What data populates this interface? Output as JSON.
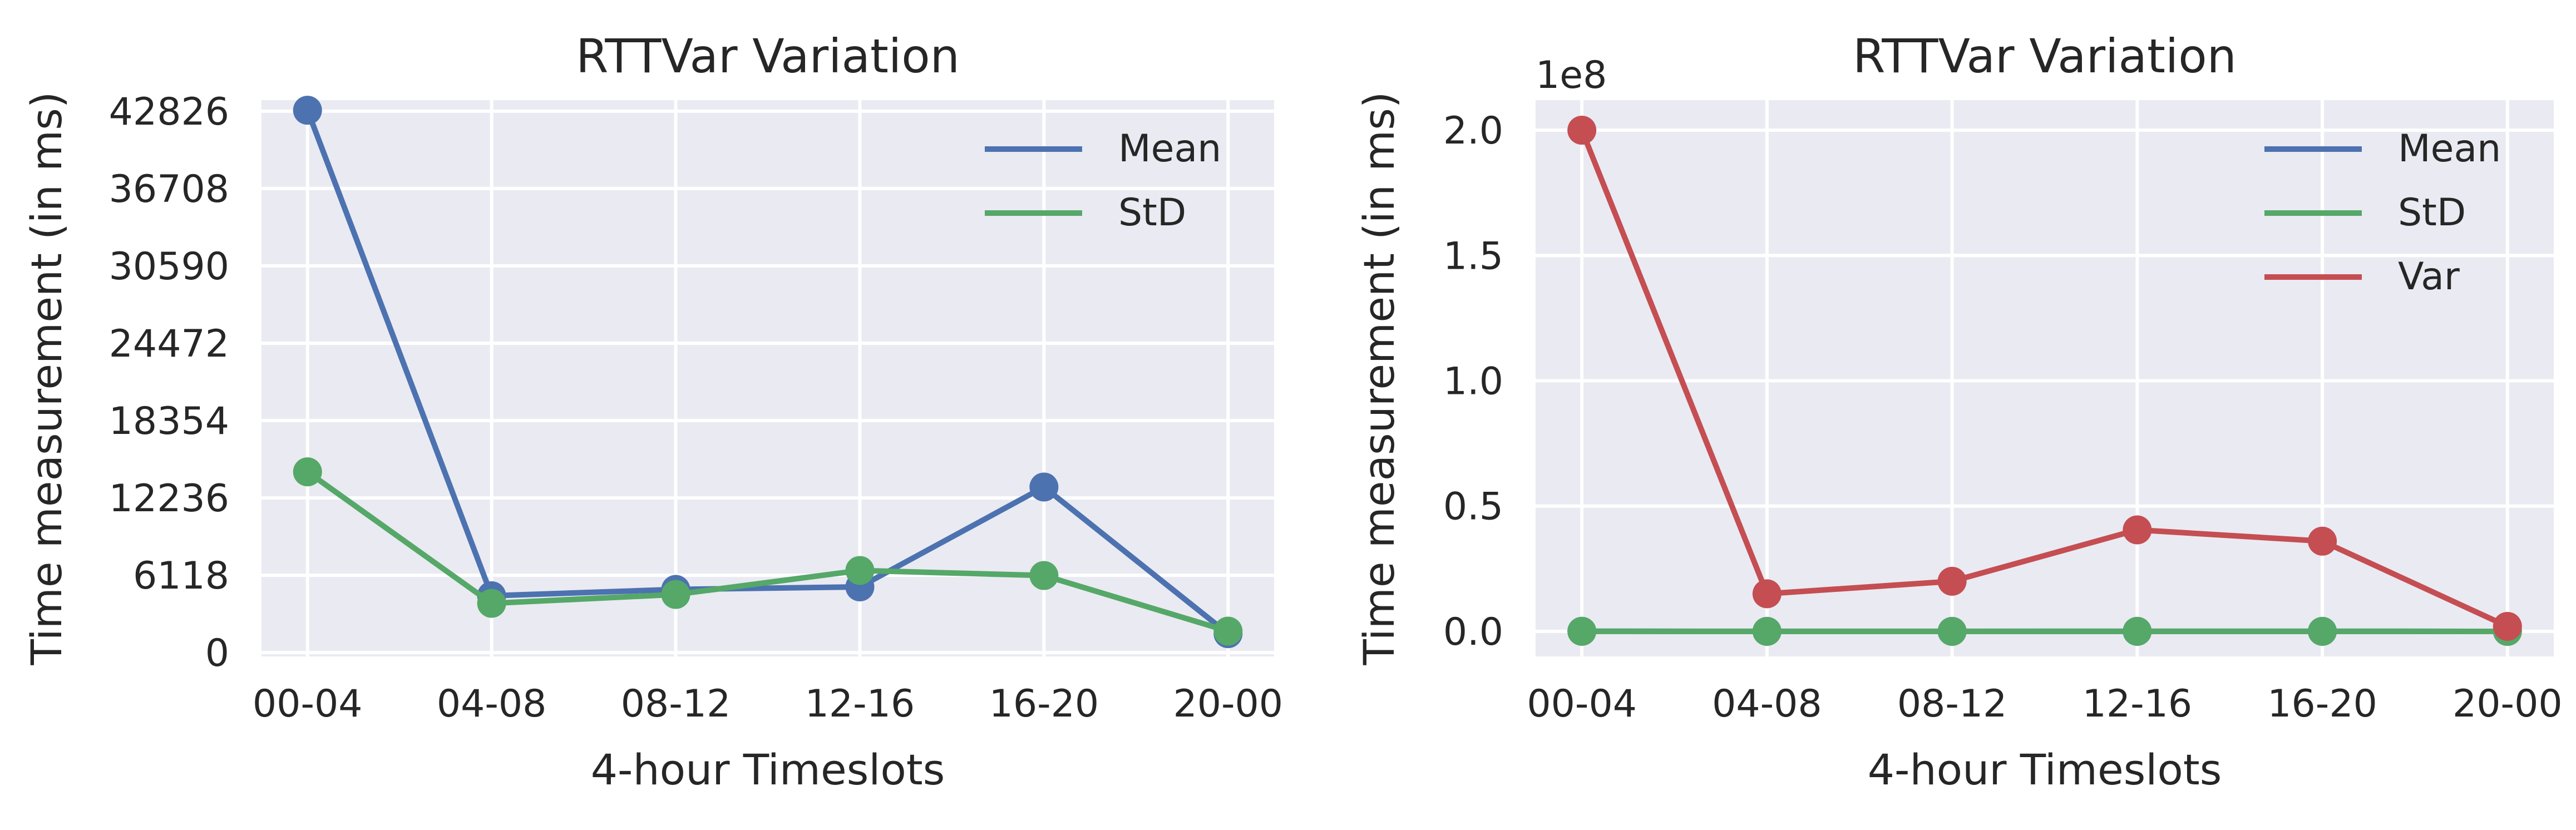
{
  "chart_data": [
    {
      "type": "line",
      "title": "RTTVar Variation",
      "xlabel": "4-hour Timeslots",
      "ylabel": "Time measurement (in ms)",
      "categories": [
        "00-04",
        "04-08",
        "08-12",
        "12-16",
        "16-20",
        "20-00"
      ],
      "yticks": [
        0,
        6118,
        12236,
        18354,
        24472,
        30590,
        36708,
        42826
      ],
      "ylim": [
        -300,
        43700
      ],
      "grid": true,
      "legend_position": "top-right",
      "series": [
        {
          "name": "Mean",
          "color": "#4c72b0",
          "values": [
            42900,
            4500,
            5000,
            5200,
            13100,
            1500
          ]
        },
        {
          "name": "StD",
          "color": "#55a868",
          "values": [
            14300,
            3900,
            4600,
            6500,
            6100,
            1700
          ]
        }
      ]
    },
    {
      "type": "line",
      "title": "RTTVar Variation",
      "xlabel": "4-hour Timeslots",
      "ylabel": "Time measurement (in ms)",
      "y_offset_label": "1e8",
      "categories": [
        "00-04",
        "04-08",
        "08-12",
        "12-16",
        "16-20",
        "20-00"
      ],
      "yticks": [
        0.0,
        0.5,
        1.0,
        1.5,
        2.0
      ],
      "ytick_labels": [
        "0.0",
        "0.5",
        "1.0",
        "1.5",
        "2.0"
      ],
      "ylim": [
        -0.1,
        2.12
      ],
      "y_unit": "1e8",
      "grid": true,
      "legend_position": "top-right",
      "series": [
        {
          "name": "Mean",
          "color": "#4c72b0",
          "values": [
            0.0004,
            0.0001,
            0.0001,
            0.0001,
            0.0001,
            0.0
          ]
        },
        {
          "name": "StD",
          "color": "#55a868",
          "values": [
            0.0001,
            0.0,
            0.0,
            0.0001,
            0.0001,
            0.0
          ]
        },
        {
          "name": "Var",
          "color": "#c44e52",
          "values": [
            2.0,
            0.15,
            0.2,
            0.405,
            0.36,
            0.02
          ]
        }
      ]
    }
  ]
}
